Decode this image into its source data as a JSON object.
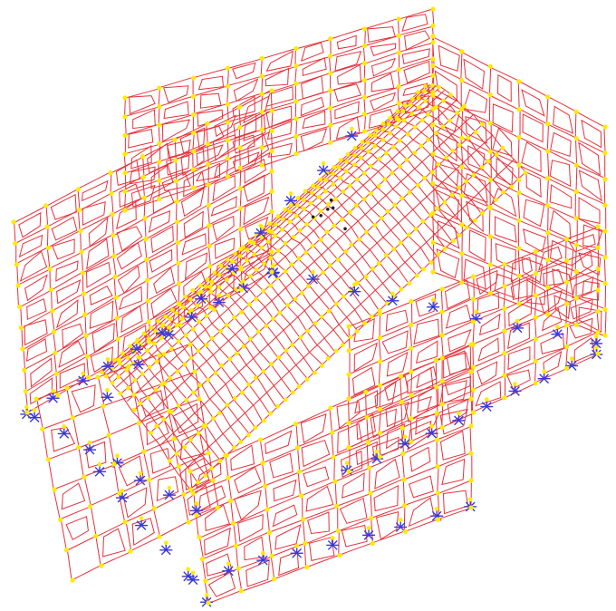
{
  "model": {
    "view": "3d-isometric",
    "colors": {
      "background": "#ffffff",
      "frame_members": "#e8303a",
      "deformed_members": "#e8303a",
      "joints": "#ffeb00",
      "supports": "#3a3ad8",
      "node_marker_dark": "#202020"
    },
    "components": [
      "left-wall-grid",
      "back-wall-grid",
      "curved-roof-vault",
      "right-wall-grid",
      "front-wall-grid",
      "base-supports"
    ]
  }
}
